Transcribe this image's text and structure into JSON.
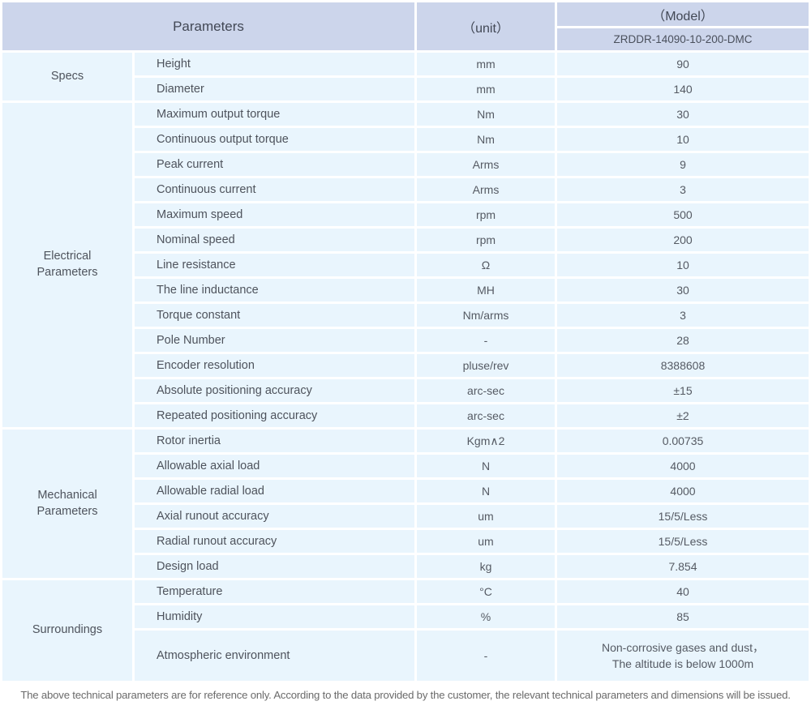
{
  "header": {
    "parameters_label": "Parameters",
    "unit_label": "（unit）",
    "model_label": "（Model）",
    "model_number": "ZRDDR-14090-10-200-DMC"
  },
  "groups": [
    {
      "label": "Specs",
      "rows": [
        {
          "name": "Height",
          "unit": "mm",
          "value": "90"
        },
        {
          "name": "Diameter",
          "unit": "mm",
          "value": "140"
        }
      ]
    },
    {
      "label": "Electrical\nParameters",
      "rows": [
        {
          "name": "Maximum output torque",
          "unit": "Nm",
          "value": "30"
        },
        {
          "name": "Continuous output torque",
          "unit": "Nm",
          "value": "10"
        },
        {
          "name": "Peak current",
          "unit": "Arms",
          "value": "9"
        },
        {
          "name": "Continuous current",
          "unit": "Arms",
          "value": "3"
        },
        {
          "name": "Maximum speed",
          "unit": "rpm",
          "value": "500"
        },
        {
          "name": "Nominal speed",
          "unit": "rpm",
          "value": "200"
        },
        {
          "name": "Line resistance",
          "unit": "Ω",
          "value": "10"
        },
        {
          "name": "The line inductance",
          "unit": "MH",
          "value": "30"
        },
        {
          "name": "Torque constant",
          "unit": "Nm/arms",
          "value": "3"
        },
        {
          "name": "Pole Number",
          "unit": "-",
          "value": "28"
        },
        {
          "name": "Encoder resolution",
          "unit": "pluse/rev",
          "value": "8388608"
        },
        {
          "name": "Absolute positioning accuracy",
          "unit": "arc-sec",
          "value": "±15"
        },
        {
          "name": "Repeated positioning accuracy",
          "unit": "arc-sec",
          "value": "±2"
        }
      ]
    },
    {
      "label": "Mechanical\nParameters",
      "rows": [
        {
          "name": "Rotor inertia",
          "unit": "Kgm∧2",
          "value": "0.00735"
        },
        {
          "name": "Allowable axial load",
          "unit": "N",
          "value": "4000"
        },
        {
          "name": "Allowable radial load",
          "unit": "N",
          "value": "4000"
        },
        {
          "name": "Axial runout accuracy",
          "unit": "um",
          "value": "15/5/Less"
        },
        {
          "name": "Radial runout accuracy",
          "unit": "um",
          "value": "15/5/Less"
        },
        {
          "name": "Design load",
          "unit": "kg",
          "value": "7.854"
        }
      ]
    },
    {
      "label": "Surroundings",
      "rows": [
        {
          "name": "Temperature",
          "unit": "°C",
          "value": "40"
        },
        {
          "name": "Humidity",
          "unit": "%",
          "value": "85"
        },
        {
          "name": "Atmospheric environment",
          "unit": "-",
          "value": "Non-corrosive gases and dust，\nThe altitude is below 1000m"
        }
      ]
    }
  ],
  "footer": {
    "note": "The above technical parameters are for reference only. According to the data provided by the customer, the relevant technical parameters and dimensions will be issued."
  },
  "colors": {
    "header_bg": "#ccd5eb",
    "cell_bg": "#e9f5fd",
    "body_text": "#50555e",
    "footer_text": "#6b6b6b",
    "page_bg": "#ffffff"
  }
}
